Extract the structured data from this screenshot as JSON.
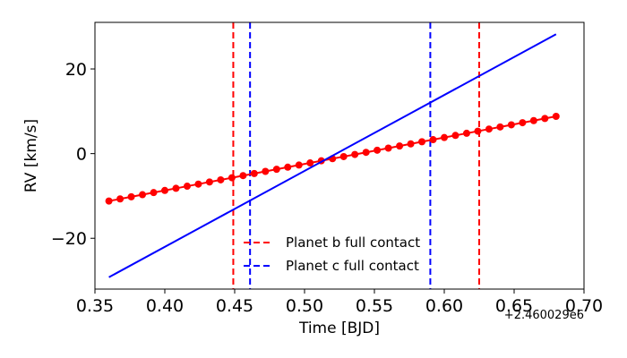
{
  "chart_data": {
    "type": "line",
    "xlabel": "Time [BJD]",
    "ylabel": "RV [km/s]",
    "x_offset_label": "+2.460029e6",
    "xlim": [
      0.35,
      0.7
    ],
    "ylim": [
      -32,
      31
    ],
    "x_ticks": [
      0.35,
      0.4,
      0.45,
      0.5,
      0.55,
      0.6,
      0.65,
      0.7
    ],
    "x_tick_labels": [
      "0.35",
      "0.40",
      "0.45",
      "0.50",
      "0.55",
      "0.60",
      "0.65",
      "0.70"
    ],
    "y_ticks": [
      -20,
      0,
      20
    ],
    "y_tick_labels": [
      "−20",
      "0",
      "20"
    ],
    "grid": false,
    "legend_position": "bottom-center",
    "series": [
      {
        "kind": "points",
        "color": "#ff0000",
        "x": [
          0.36,
          0.368,
          0.376,
          0.384,
          0.392,
          0.4,
          0.408,
          0.416,
          0.424,
          0.432,
          0.44,
          0.448,
          0.456,
          0.464,
          0.472,
          0.48,
          0.488,
          0.496,
          0.504,
          0.512,
          0.52,
          0.528,
          0.536,
          0.544,
          0.552,
          0.56,
          0.568,
          0.576,
          0.584,
          0.592,
          0.6,
          0.608,
          0.616,
          0.624,
          0.632,
          0.64,
          0.648,
          0.656,
          0.664,
          0.672,
          0.68
        ],
        "y": [
          -11.2,
          -10.7,
          -10.2,
          -9.7,
          -9.2,
          -8.7,
          -8.2,
          -7.7,
          -7.2,
          -6.7,
          -6.2,
          -5.7,
          -5.2,
          -4.7,
          -4.2,
          -3.7,
          -3.2,
          -2.7,
          -2.2,
          -1.7,
          -1.2,
          -0.7,
          -0.2,
          0.3,
          0.8,
          1.3,
          1.8,
          2.3,
          2.8,
          3.3,
          3.8,
          4.3,
          4.8,
          5.3,
          5.8,
          6.3,
          6.8,
          7.3,
          7.8,
          8.3,
          8.8
        ]
      },
      {
        "kind": "line",
        "color": "#0000ff",
        "x": [
          0.36,
          0.68
        ],
        "y": [
          -29.2,
          28.2
        ]
      }
    ],
    "vlines": [
      {
        "x": 0.449,
        "color": "#ff0000",
        "group": "b"
      },
      {
        "x": 0.625,
        "color": "#ff0000",
        "group": "b"
      },
      {
        "x": 0.461,
        "color": "#0000ff",
        "group": "c"
      },
      {
        "x": 0.59,
        "color": "#0000ff",
        "group": "c"
      }
    ],
    "legend": [
      {
        "label": "Planet b full contact",
        "color": "#ff0000"
      },
      {
        "label": "Planet c full contact",
        "color": "#0000ff"
      }
    ]
  }
}
